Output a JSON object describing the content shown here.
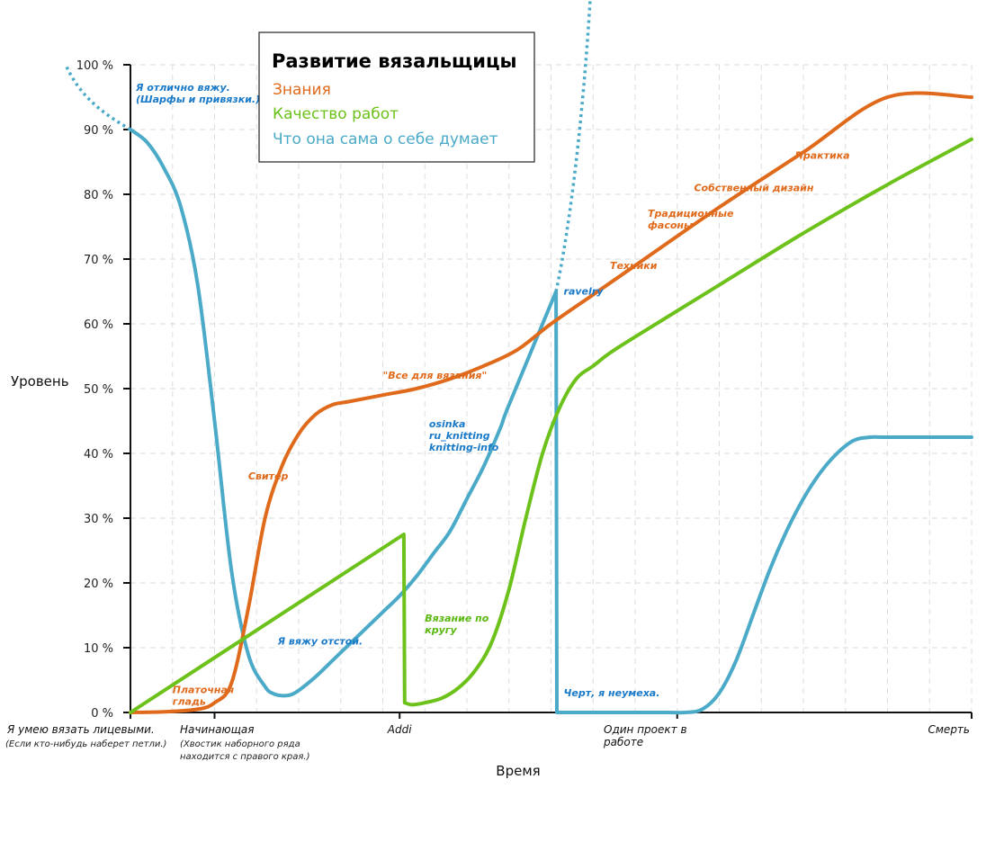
{
  "chart_data": {
    "type": "line",
    "title": "Развитие вязальщицы",
    "xlabel": "Время",
    "ylabel": "Уровень",
    "ylim": [
      0,
      100
    ],
    "y_ticks": [
      "0 %",
      "10 %",
      "20 %",
      "30 %",
      "40 %",
      "50 %",
      "60 %",
      "70 %",
      "80 %",
      "90 %",
      "100 %"
    ],
    "grid": true,
    "legend_position": "top-center",
    "categories": [
      {
        "x": 0,
        "label": "Я умею вязать лицевыми.",
        "sublabel": "(Если кто-нибудь наберет петли.)"
      },
      {
        "x": 10,
        "label": "Начинающая",
        "sublabel": "(Хвостик наборного ряда находится с правого края.)"
      },
      {
        "x": 32,
        "label": "Addi",
        "sublabel": ""
      },
      {
        "x": 65,
        "label": "Один проект в работе",
        "sublabel": ""
      },
      {
        "x": 100,
        "label": "Смерть",
        "sublabel": ""
      }
    ],
    "series": [
      {
        "name": "Знания",
        "color": "#e06a1c",
        "x": [
          0,
          4,
          8,
          10,
          12,
          14,
          16,
          18,
          20,
          22,
          24,
          26,
          30,
          34,
          38,
          42,
          46,
          50,
          55,
          60,
          70,
          80,
          90,
          100
        ],
        "y": [
          0,
          0.1,
          0.5,
          1.5,
          4.5,
          16,
          30,
          38,
          43,
          46,
          47.5,
          48,
          49,
          50,
          51.5,
          53.5,
          56,
          60,
          64.5,
          69,
          78,
          86.5,
          95,
          95
        ]
      },
      {
        "name": "Качество работ",
        "color": "#6cc21a",
        "x": [
          0,
          32.5,
          32.6,
          33.5,
          35,
          37,
          39,
          41,
          43,
          45,
          47,
          49,
          51,
          53,
          55,
          57,
          60,
          70,
          80,
          90,
          100
        ],
        "y": [
          0,
          27.5,
          1.5,
          1.2,
          1.5,
          2.2,
          3.8,
          6.5,
          11,
          19,
          30,
          40,
          47,
          51.5,
          53.5,
          55.5,
          58,
          66,
          74,
          81.5,
          88.5
        ]
      },
      {
        "name": "Что она сама о себе думает",
        "color": "#4aaac8",
        "x": [
          0,
          2,
          4,
          6,
          8,
          10,
          12,
          14,
          16,
          17,
          18,
          19,
          20,
          22,
          24,
          26,
          28,
          30,
          32,
          34,
          36,
          38,
          40,
          42,
          44,
          45,
          50.6,
          50.7,
          56,
          60,
          62,
          64,
          66,
          68,
          70,
          72,
          74,
          76,
          78,
          80,
          82,
          84,
          86,
          88,
          90,
          100
        ],
        "y": [
          90,
          88,
          84,
          78,
          66,
          45,
          22,
          9,
          4,
          2.9,
          2.6,
          2.7,
          3.4,
          5.5,
          8,
          10.5,
          13,
          15.5,
          18,
          21,
          24.5,
          28,
          33,
          38,
          44,
          47.5,
          65,
          0,
          0,
          0,
          0,
          0,
          0,
          0.5,
          3,
          8,
          15,
          22,
          28,
          33,
          37,
          40,
          42,
          42.5,
          42.5,
          42.5
        ]
      }
    ],
    "dotted_extensions": [
      {
        "series": "Что она сама о себе думает",
        "at": "start",
        "meaning": "above 100 %"
      },
      {
        "series": "Что она сама о себе думает",
        "at": "ravelry",
        "meaning": "above 100 %"
      }
    ],
    "annotations": [
      {
        "text": "Я отлично вяжу.\n(Шарфы и привязки.)",
        "x": 0,
        "y": 96,
        "series": "Что она сама о себе думает"
      },
      {
        "text": "Платочная\nгладь",
        "x": 5,
        "y": 3,
        "series": "Знания"
      },
      {
        "text": "Свитер",
        "x": 14,
        "y": 36,
        "series": "Знания"
      },
      {
        "text": "Я вяжу отстой.",
        "x": 17.5,
        "y": 10.5,
        "series": "Что она сама о себе думает"
      },
      {
        "text": "\"Все для вязания\"",
        "x": 30,
        "y": 51.5,
        "series": "Знания"
      },
      {
        "text": "osinka\nru_knitting\nknitting-info",
        "x": 35.5,
        "y": 44,
        "series": "Что она сама о себе думает"
      },
      {
        "text": "Вязание по\nкругу",
        "x": 35,
        "y": 14,
        "series": "Качество работ"
      },
      {
        "text": "ravelry",
        "x": 51.5,
        "y": 64.5,
        "series": "Что она сама о себе думает"
      },
      {
        "text": "Черт, я неумеха.",
        "x": 51.5,
        "y": 2.5,
        "series": "Что она сама о себе думает"
      },
      {
        "text": "Техники",
        "x": 57,
        "y": 68.5,
        "series": "Знания"
      },
      {
        "text": "Традиционные\nфасоны",
        "x": 61.5,
        "y": 76.5,
        "series": "Знания"
      },
      {
        "text": "Собственный дизайн",
        "x": 67,
        "y": 80.5,
        "series": "Знания"
      },
      {
        "text": "Практика",
        "x": 79,
        "y": 85.5,
        "series": "Знания"
      }
    ]
  }
}
